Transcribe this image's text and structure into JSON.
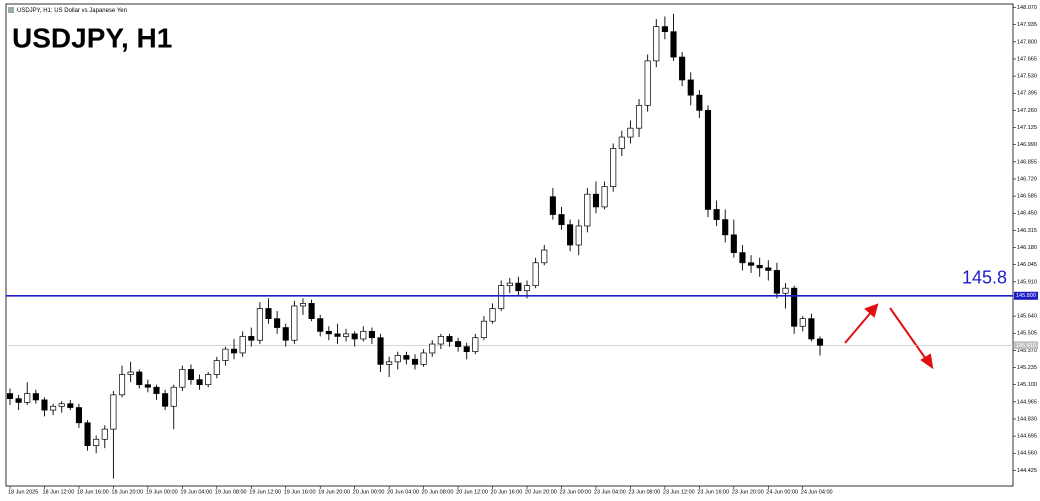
{
  "chart_data": {
    "type": "candlestick",
    "subtitle": "USDJPY, H1: US Dollar vs Japanese Yen",
    "title": "USDJPY, H1",
    "up_color": "#ffffff",
    "down_color": "#000000",
    "categories": [
      "18 Jun 2025",
      null,
      null,
      null,
      "18 Jun 12:00",
      null,
      null,
      null,
      "18 Jun 16:00",
      null,
      null,
      null,
      "18 Jun 20:00",
      null,
      null,
      null,
      "19 Jun 00:00",
      null,
      null,
      null,
      "19 Jun 04:00",
      null,
      null,
      null,
      "19 Jun 08:00",
      null,
      null,
      null,
      "19 Jun 12:00",
      null,
      null,
      null,
      "19 Jun 16:00",
      null,
      null,
      null,
      "19 Jun 20:00",
      null,
      null,
      null,
      "20 Jun 00:00",
      null,
      null,
      null,
      "20 Jun 04:00",
      null,
      null,
      null,
      "20 Jun 08:00",
      null,
      null,
      null,
      "20 Jun 12:00",
      null,
      null,
      null,
      "20 Jun 16:00",
      null,
      null,
      null,
      "20 Jun 20:00",
      null,
      null,
      null,
      "23 Jun 00:00",
      null,
      null,
      null,
      "23 Jun 04:00",
      null,
      null,
      null,
      "23 Jun 08:00",
      null,
      null,
      null,
      "23 Jun 12:00",
      null,
      null,
      null,
      "23 Jun 16:00",
      null,
      null,
      null,
      "23 Jun 20:00",
      null,
      null,
      null,
      "24 Jun 00:00",
      null,
      null,
      null,
      "24 Jun 04:00",
      null,
      null
    ],
    "ohlc": [
      [
        145.03,
        145.07,
        144.94,
        144.99
      ],
      [
        144.99,
        145.02,
        144.9,
        144.96
      ],
      [
        144.96,
        145.12,
        144.94,
        145.03
      ],
      [
        145.03,
        145.06,
        144.95,
        144.98
      ],
      [
        144.98,
        145.0,
        144.85,
        144.9
      ],
      [
        144.9,
        144.95,
        144.86,
        144.93
      ],
      [
        144.93,
        144.97,
        144.88,
        144.95
      ],
      [
        144.95,
        144.98,
        144.9,
        144.92
      ],
      [
        144.92,
        144.95,
        144.76,
        144.8
      ],
      [
        144.8,
        144.82,
        144.58,
        144.62
      ],
      [
        144.62,
        144.7,
        144.56,
        144.67
      ],
      [
        144.67,
        144.78,
        144.6,
        144.75
      ],
      [
        144.75,
        145.05,
        144.36,
        145.02
      ],
      [
        145.02,
        145.25,
        145.0,
        145.18
      ],
      [
        145.18,
        145.28,
        145.12,
        145.2
      ],
      [
        145.2,
        145.22,
        145.07,
        145.1
      ],
      [
        145.1,
        145.14,
        145.04,
        145.08
      ],
      [
        145.08,
        145.1,
        144.98,
        145.03
      ],
      [
        145.03,
        145.06,
        144.9,
        144.93
      ],
      [
        144.93,
        145.1,
        144.75,
        145.08
      ],
      [
        145.08,
        145.25,
        145.05,
        145.22
      ],
      [
        145.22,
        145.26,
        145.1,
        145.14
      ],
      [
        145.14,
        145.18,
        145.06,
        145.1
      ],
      [
        145.1,
        145.2,
        145.08,
        145.18
      ],
      [
        145.18,
        145.32,
        145.15,
        145.29
      ],
      [
        145.29,
        145.4,
        145.25,
        145.38
      ],
      [
        145.38,
        145.46,
        145.3,
        145.35
      ],
      [
        145.35,
        145.52,
        145.32,
        145.48
      ],
      [
        145.48,
        145.55,
        145.4,
        145.45
      ],
      [
        145.45,
        145.75,
        145.42,
        145.7
      ],
      [
        145.7,
        145.78,
        145.58,
        145.62
      ],
      [
        145.62,
        145.68,
        145.5,
        145.55
      ],
      [
        145.55,
        145.58,
        145.4,
        145.45
      ],
      [
        145.45,
        145.76,
        145.42,
        145.72
      ],
      [
        145.72,
        145.78,
        145.65,
        145.74
      ],
      [
        145.74,
        145.77,
        145.6,
        145.62
      ],
      [
        145.62,
        145.65,
        145.48,
        145.52
      ],
      [
        145.52,
        145.56,
        145.45,
        145.5
      ],
      [
        145.5,
        145.58,
        145.42,
        145.48
      ],
      [
        145.48,
        145.54,
        145.44,
        145.5
      ],
      [
        145.5,
        145.52,
        145.4,
        145.46
      ],
      [
        145.46,
        145.56,
        145.44,
        145.52
      ],
      [
        145.52,
        145.55,
        145.42,
        145.47
      ],
      [
        145.47,
        145.5,
        145.2,
        145.26
      ],
      [
        145.26,
        145.32,
        145.16,
        145.28
      ],
      [
        145.28,
        145.36,
        145.22,
        145.33
      ],
      [
        145.33,
        145.36,
        145.26,
        145.3
      ],
      [
        145.3,
        145.34,
        145.22,
        145.26
      ],
      [
        145.26,
        145.38,
        145.24,
        145.35
      ],
      [
        145.35,
        145.45,
        145.32,
        145.42
      ],
      [
        145.42,
        145.5,
        145.38,
        145.48
      ],
      [
        145.48,
        145.5,
        145.4,
        145.44
      ],
      [
        145.44,
        145.47,
        145.36,
        145.4
      ],
      [
        145.4,
        145.43,
        145.3,
        145.36
      ],
      [
        145.36,
        145.5,
        145.34,
        145.47
      ],
      [
        145.47,
        145.64,
        145.45,
        145.6
      ],
      [
        145.6,
        145.74,
        145.58,
        145.7
      ],
      [
        145.7,
        145.92,
        145.68,
        145.88
      ],
      [
        145.88,
        145.94,
        145.82,
        145.9
      ],
      [
        145.9,
        145.95,
        145.8,
        145.84
      ],
      [
        145.84,
        145.92,
        145.78,
        145.88
      ],
      [
        145.88,
        146.1,
        145.86,
        146.06
      ],
      [
        146.06,
        146.2,
        146.04,
        146.16
      ],
      [
        146.58,
        146.65,
        146.4,
        146.44
      ],
      [
        146.44,
        146.5,
        146.32,
        146.36
      ],
      [
        146.36,
        146.4,
        146.15,
        146.2
      ],
      [
        146.2,
        146.4,
        146.12,
        146.35
      ],
      [
        146.35,
        146.65,
        146.3,
        146.6
      ],
      [
        146.6,
        146.7,
        146.45,
        146.5
      ],
      [
        146.5,
        146.7,
        146.48,
        146.66
      ],
      [
        146.66,
        147.0,
        146.62,
        146.96
      ],
      [
        146.96,
        147.1,
        146.9,
        147.05
      ],
      [
        147.05,
        147.18,
        147.0,
        147.12
      ],
      [
        147.12,
        147.35,
        147.05,
        147.3
      ],
      [
        147.3,
        147.7,
        147.25,
        147.65
      ],
      [
        147.65,
        147.98,
        147.6,
        147.92
      ],
      [
        147.92,
        148.0,
        147.82,
        147.88
      ],
      [
        147.88,
        148.02,
        147.65,
        147.68
      ],
      [
        147.68,
        147.72,
        147.45,
        147.5
      ],
      [
        147.5,
        147.56,
        147.3,
        147.38
      ],
      [
        147.38,
        147.42,
        147.2,
        147.26
      ],
      [
        147.26,
        147.3,
        146.42,
        146.48
      ],
      [
        146.48,
        146.55,
        146.35,
        146.4
      ],
      [
        146.4,
        146.48,
        146.22,
        146.28
      ],
      [
        146.28,
        146.4,
        146.1,
        146.14
      ],
      [
        146.14,
        146.2,
        146.0,
        146.06
      ],
      [
        146.06,
        146.12,
        145.98,
        146.04
      ],
      [
        146.04,
        146.1,
        145.95,
        146.02
      ],
      [
        146.02,
        146.08,
        145.92,
        146.0
      ],
      [
        146.0,
        146.06,
        145.78,
        145.82
      ],
      [
        145.82,
        145.9,
        145.7,
        145.86
      ],
      [
        145.86,
        145.88,
        145.5,
        145.56
      ],
      [
        145.56,
        145.64,
        145.52,
        145.62
      ],
      [
        145.62,
        145.66,
        145.44,
        145.46
      ],
      [
        145.46,
        145.48,
        145.33,
        145.41
      ]
    ],
    "ylim": [
      144.31,
      148.09
    ],
    "yticks": [
      144.425,
      {
        "value": 144.56,
        "label": "144.560"
      },
      144.695,
      {
        "value": 144.83,
        "label": "144.830"
      },
      144.965,
      {
        "value": 145.1,
        "label": "145.100"
      },
      145.235,
      {
        "value": 145.37,
        "label": "145.370"
      },
      145.505,
      {
        "value": 145.64,
        "label": "145.640"
      },
      {
        "value": 145.91,
        "label": "145.910"
      },
      146.045,
      {
        "value": 146.18,
        "label": "146.180"
      },
      146.315,
      {
        "value": 146.45,
        "label": "146.450"
      },
      146.585,
      {
        "value": 146.72,
        "label": "146.720"
      },
      146.855,
      {
        "value": 146.99,
        "label": "146.990"
      },
      147.125,
      {
        "value": 147.26,
        "label": "147.260"
      },
      147.395,
      {
        "value": 147.53,
        "label": "147.530"
      },
      147.665,
      {
        "value": 147.8,
        "label": "147.800"
      },
      147.935,
      {
        "value": 148.07,
        "label": "148.070"
      }
    ],
    "hline": {
      "value": 145.8,
      "label": "145.8",
      "axis_label": "145.800",
      "color": "#1c1cc8"
    },
    "last_price": {
      "value": 145.41,
      "axis_label": "145.410",
      "color": "#c0c0c0"
    }
  }
}
